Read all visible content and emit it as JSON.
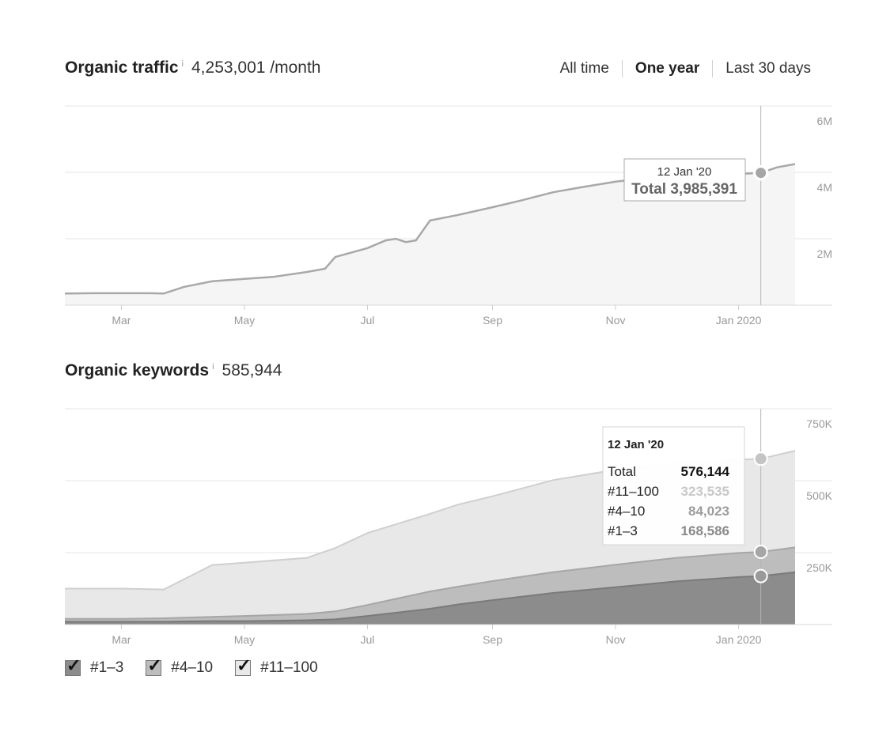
{
  "traffic": {
    "title": "Organic traffic",
    "info_icon": "i",
    "value": "4,253,001 /month",
    "ranges": [
      "All time",
      "One year",
      "Last 30 days"
    ],
    "active_range": "One year"
  },
  "keywords": {
    "title": "Organic keywords",
    "info_icon": "i",
    "value": "585,944"
  },
  "legend": [
    {
      "label": "#1–3",
      "color": "#8c8c8c",
      "checked": true
    },
    {
      "label": "#4–10",
      "color": "#bdbdbd",
      "checked": true
    },
    {
      "label": "#11–100",
      "color": "#e8e8e8",
      "checked": true
    }
  ],
  "chart_data": [
    {
      "type": "area",
      "ylim": [
        0,
        6000000
      ],
      "yticks": [
        2000000,
        4000000,
        6000000
      ],
      "ytick_labels": [
        "2M",
        "4M",
        "6M"
      ],
      "xlim": [
        "2019-02-01",
        "2020-01-29"
      ],
      "xticks": [
        "2019-03-01",
        "2019-05-01",
        "2019-07-01",
        "2019-09-01",
        "2019-11-01",
        "2020-01-01"
      ],
      "xtick_labels": [
        "Mar",
        "May",
        "Jul",
        "Sep",
        "Nov",
        "Jan 2020"
      ],
      "grid": true,
      "colors": {
        "line": "#a8a8a8",
        "fill": "#f5f5f5"
      },
      "series": [
        {
          "x": [
            "2019-02-01",
            "2019-02-15",
            "2019-03-01",
            "2019-03-15",
            "2019-03-22",
            "2019-04-01",
            "2019-04-15",
            "2019-05-01",
            "2019-05-15",
            "2019-06-01",
            "2019-06-10",
            "2019-06-15",
            "2019-07-01",
            "2019-07-10",
            "2019-07-15",
            "2019-07-20",
            "2019-07-25",
            "2019-08-01",
            "2019-08-15",
            "2019-09-01",
            "2019-09-15",
            "2019-10-01",
            "2019-10-15",
            "2019-11-01",
            "2019-11-15",
            "2019-12-01",
            "2019-12-15",
            "2020-01-01",
            "2020-01-12",
            "2020-01-20",
            "2020-01-29"
          ],
          "values": [
            350000,
            360000,
            360000,
            360000,
            350000,
            550000,
            720000,
            790000,
            850000,
            1000000,
            1100000,
            1450000,
            1720000,
            1950000,
            2000000,
            1900000,
            1950000,
            2550000,
            2720000,
            2950000,
            3150000,
            3400000,
            3550000,
            3720000,
            3820000,
            3820000,
            3870000,
            3950000,
            3985391,
            4150000,
            4250000
          ]
        }
      ],
      "tooltip": {
        "date": "12 Jan '20",
        "label": "Total",
        "value": "3,985,391"
      }
    },
    {
      "type": "area",
      "stacked": true,
      "ylim": [
        0,
        750000
      ],
      "yticks": [
        250000,
        500000,
        750000
      ],
      "ytick_labels": [
        "250K",
        "500K",
        "750K"
      ],
      "xlim": [
        "2019-02-01",
        "2020-01-29"
      ],
      "xticks": [
        "2019-03-01",
        "2019-05-01",
        "2019-07-01",
        "2019-09-01",
        "2019-11-01",
        "2020-01-01"
      ],
      "xtick_labels": [
        "Mar",
        "May",
        "Jul",
        "Sep",
        "Nov",
        "Jan 2020"
      ],
      "grid": true,
      "x": [
        "2019-02-01",
        "2019-03-01",
        "2019-03-22",
        "2019-04-15",
        "2019-05-01",
        "2019-06-01",
        "2019-06-15",
        "2019-07-01",
        "2019-08-01",
        "2019-08-15",
        "2019-09-01",
        "2019-10-01",
        "2019-11-01",
        "2019-12-01",
        "2020-01-01",
        "2020-01-12",
        "2020-01-29"
      ],
      "series": [
        {
          "name": "#1–3",
          "color": "#8c8c8c",
          "values": [
            10000,
            10000,
            10000,
            12000,
            12000,
            15000,
            18000,
            30000,
            55000,
            70000,
            85000,
            110000,
            130000,
            150000,
            165000,
            168586,
            182000
          ]
        },
        {
          "name": "#4–10",
          "color": "#bdbdbd",
          "values": [
            10000,
            10000,
            12000,
            15000,
            18000,
            22000,
            28000,
            38000,
            60000,
            62000,
            66000,
            72000,
            78000,
            82000,
            84000,
            84023,
            86000
          ]
        },
        {
          "name": "#11–100",
          "color": "#e8e8e8",
          "values": [
            105000,
            105000,
            100000,
            180000,
            185000,
            195000,
            220000,
            250000,
            270000,
            285000,
            295000,
            320000,
            330000,
            326000,
            324000,
            323535,
            336000
          ]
        }
      ],
      "tooltip": {
        "date": "12 Jan '20",
        "rows": [
          {
            "label": "Total",
            "value": "576,144"
          },
          {
            "label": "#11–100",
            "value": "323,535"
          },
          {
            "label": "#4–10",
            "value": "84,023"
          },
          {
            "label": "#1–3",
            "value": "168,586"
          }
        ]
      }
    }
  ]
}
